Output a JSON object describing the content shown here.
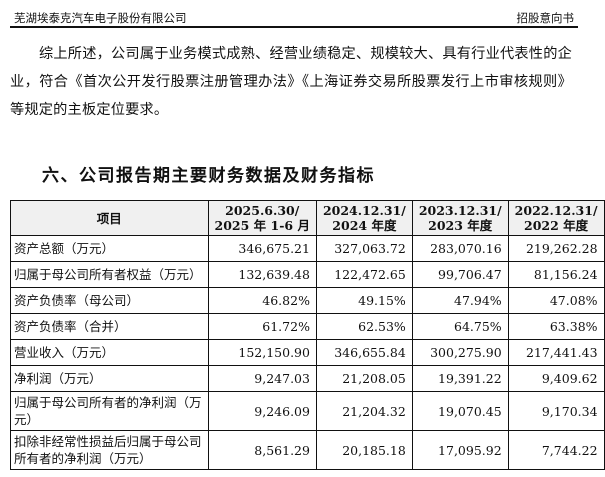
{
  "header": {
    "company": "芜湖埃泰克汽车电子股份有限公司",
    "doc_type": "招股意向书"
  },
  "paragraph": "综上所述，公司属于业务模式成熟、经营业绩稳定、规模较大、具有行业代表性的企业，符合《首次公开发行股票注册管理办法》《上海证券交易所股票发行上市审核规则》等规定的主板定位要求。",
  "section_title": "六、公司报告期主要财务数据及财务指标",
  "table": {
    "headers": [
      {
        "line1": "项目",
        "line2": ""
      },
      {
        "line1": "2025.6.30/",
        "line2": "2025 年 1-6 月"
      },
      {
        "line1": "2024.12.31/",
        "line2": "2024 年度"
      },
      {
        "line1": "2023.12.31/",
        "line2": "2023 年度"
      },
      {
        "line1": "2022.12.31/",
        "line2": "2022 年度"
      }
    ],
    "rows": [
      {
        "label": "资产总额（万元）",
        "values": [
          "346,675.21",
          "327,063.72",
          "283,070.16",
          "219,262.28"
        ]
      },
      {
        "label": "归属于母公司所有者权益（万元）",
        "values": [
          "132,639.48",
          "122,472.65",
          "99,706.47",
          "81,156.24"
        ]
      },
      {
        "label": "资产负债率（母公司）",
        "values": [
          "46.82%",
          "49.15%",
          "47.94%",
          "47.08%"
        ]
      },
      {
        "label": "资产负债率（合并）",
        "values": [
          "61.72%",
          "62.53%",
          "64.75%",
          "63.38%"
        ]
      },
      {
        "label": "营业收入（万元）",
        "values": [
          "152,150.90",
          "346,655.84",
          "300,275.90",
          "217,441.43"
        ]
      },
      {
        "label": "净利润（万元）",
        "values": [
          "9,247.03",
          "21,208.05",
          "19,391.22",
          "9,409.62"
        ]
      },
      {
        "label": "归属于母公司所有者的净利润（万元）",
        "values": [
          "9,246.09",
          "21,204.32",
          "19,070.45",
          "9,170.34"
        ]
      },
      {
        "label": "扣除非经常性损益后归属于母公司所有者的净利润（万元）",
        "values": [
          "8,561.29",
          "20,185.18",
          "17,095.92",
          "7,744.22"
        ]
      }
    ]
  }
}
